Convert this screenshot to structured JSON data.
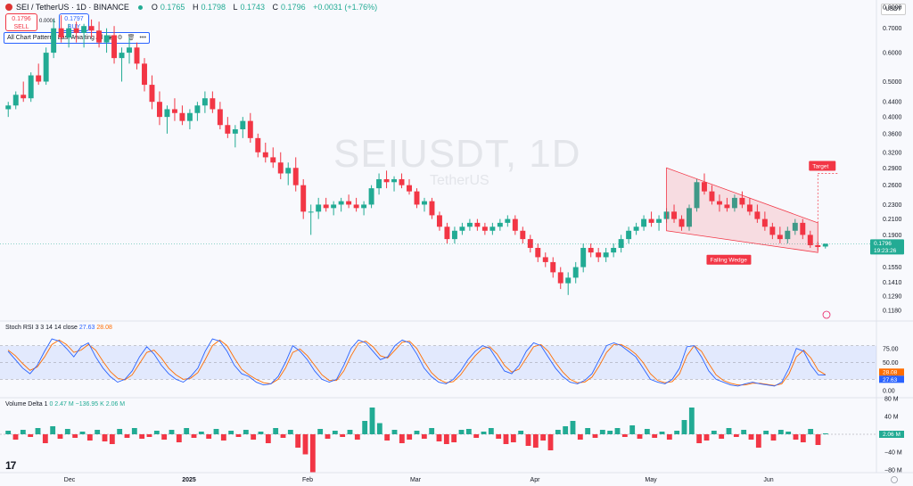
{
  "header": {
    "symbol": "SEI / TetherUS · 1D · BINANCE",
    "ohlc": [
      {
        "k": "O",
        "v": "0.1765"
      },
      {
        "k": "H",
        "v": "0.1798"
      },
      {
        "k": "L",
        "v": "0.1743"
      },
      {
        "k": "C",
        "v": "0.1796"
      },
      {
        "k": "",
        "v": "+0.0031 (+1.76%)"
      }
    ]
  },
  "trade": {
    "sell_price": "0.1796",
    "sell_label": "SELL",
    "spread": "0.0001",
    "buy_price": "0.1797",
    "buy_label": "BUY"
  },
  "indicator_box": {
    "label": "All Chart Patterns Last Awaiting All"
  },
  "watermark": {
    "symbol": "SEIUSDT, 1D",
    "name": "TetherUS"
  },
  "currency": "USDT",
  "price_axis": [
    "0.8000",
    "0.7000",
    "0.6000",
    "0.5000",
    "0.4400",
    "0.4000",
    "0.3600",
    "0.3200",
    "0.2900",
    "0.2600",
    "0.2300",
    "0.2100",
    "0.1900",
    "0.1550",
    "0.1410",
    "0.1290",
    "0.1180"
  ],
  "last_price": {
    "value": "0.1796",
    "countdown": "19:23:26"
  },
  "pattern": {
    "name": "Falling Wedge",
    "target_label": "Target"
  },
  "rsi": {
    "title": "Stoch RSI 3 3 14 14 close",
    "k": "27.63",
    "d": "28.08",
    "axis": [
      "75.00",
      "50.00",
      "25.00",
      "0.00"
    ]
  },
  "volume": {
    "title": "Volume Delta 1",
    "v0": "0",
    "v1": "2.47 M",
    "v2": "−136.95 K",
    "v3": "2.06 M",
    "axis": [
      "80 M",
      "40 M",
      "0",
      "−40 M",
      "−80 M"
    ],
    "last": "2.06 M"
  },
  "time_axis": [
    "Dec",
    "2025",
    "Feb",
    "Mar",
    "Apr",
    "May",
    "Jun"
  ],
  "colors": {
    "up": "#22ab94",
    "down": "#f23645",
    "k_line": "#2962ff",
    "d_line": "#ff6d00",
    "wedge": "#f23645"
  },
  "chart_data": [
    {
      "type": "candlestick",
      "series": [
        {
          "name": "SEI / TetherUS",
          "values": [
            [
              0.42,
              0.44,
              0.4,
              0.43
            ],
            [
              0.43,
              0.47,
              0.42,
              0.46
            ],
            [
              0.46,
              0.5,
              0.44,
              0.45
            ],
            [
              0.45,
              0.53,
              0.44,
              0.52
            ],
            [
              0.52,
              0.56,
              0.49,
              0.5
            ],
            [
              0.5,
              0.62,
              0.49,
              0.6
            ],
            [
              0.6,
              0.74,
              0.58,
              0.7
            ],
            [
              0.7,
              0.76,
              0.64,
              0.66
            ],
            [
              0.66,
              0.72,
              0.62,
              0.7
            ],
            [
              0.7,
              0.73,
              0.64,
              0.68
            ],
            [
              0.68,
              0.72,
              0.62,
              0.71
            ],
            [
              0.71,
              0.74,
              0.66,
              0.69
            ],
            [
              0.69,
              0.73,
              0.62,
              0.64
            ],
            [
              0.64,
              0.7,
              0.6,
              0.67
            ],
            [
              0.67,
              0.71,
              0.56,
              0.58
            ],
            [
              0.58,
              0.62,
              0.5,
              0.6
            ],
            [
              0.6,
              0.66,
              0.56,
              0.62
            ],
            [
              0.62,
              0.64,
              0.54,
              0.56
            ],
            [
              0.56,
              0.58,
              0.47,
              0.49
            ],
            [
              0.49,
              0.52,
              0.42,
              0.44
            ],
            [
              0.44,
              0.47,
              0.38,
              0.4
            ],
            [
              0.4,
              0.43,
              0.36,
              0.42
            ],
            [
              0.42,
              0.45,
              0.39,
              0.41
            ],
            [
              0.41,
              0.43,
              0.38,
              0.39
            ],
            [
              0.39,
              0.42,
              0.37,
              0.41
            ],
            [
              0.41,
              0.44,
              0.39,
              0.43
            ],
            [
              0.43,
              0.47,
              0.41,
              0.45
            ],
            [
              0.45,
              0.47,
              0.41,
              0.42
            ],
            [
              0.42,
              0.44,
              0.37,
              0.38
            ],
            [
              0.38,
              0.4,
              0.35,
              0.36
            ],
            [
              0.36,
              0.38,
              0.33,
              0.37
            ],
            [
              0.37,
              0.4,
              0.35,
              0.39
            ],
            [
              0.39,
              0.41,
              0.34,
              0.35
            ],
            [
              0.35,
              0.36,
              0.31,
              0.32
            ],
            [
              0.32,
              0.34,
              0.3,
              0.31
            ],
            [
              0.31,
              0.33,
              0.29,
              0.3
            ],
            [
              0.3,
              0.32,
              0.27,
              0.28
            ],
            [
              0.28,
              0.3,
              0.26,
              0.29
            ],
            [
              0.29,
              0.31,
              0.25,
              0.26
            ],
            [
              0.26,
              0.27,
              0.21,
              0.22
            ],
            [
              0.22,
              0.23,
              0.19,
              0.22
            ],
            [
              0.22,
              0.24,
              0.21,
              0.23
            ],
            [
              0.23,
              0.24,
              0.22,
              0.225
            ],
            [
              0.225,
              0.235,
              0.215,
              0.23
            ],
            [
              0.23,
              0.24,
              0.22,
              0.235
            ],
            [
              0.235,
              0.245,
              0.225,
              0.23
            ],
            [
              0.23,
              0.24,
              0.22,
              0.225
            ],
            [
              0.225,
              0.235,
              0.215,
              0.23
            ],
            [
              0.23,
              0.26,
              0.225,
              0.255
            ],
            [
              0.255,
              0.28,
              0.245,
              0.27
            ],
            [
              0.27,
              0.285,
              0.255,
              0.265
            ],
            [
              0.265,
              0.275,
              0.25,
              0.27
            ],
            [
              0.27,
              0.28,
              0.255,
              0.26
            ],
            [
              0.26,
              0.27,
              0.245,
              0.25
            ],
            [
              0.25,
              0.255,
              0.225,
              0.23
            ],
            [
              0.23,
              0.24,
              0.22,
              0.235
            ],
            [
              0.235,
              0.24,
              0.21,
              0.215
            ],
            [
              0.215,
              0.22,
              0.195,
              0.2
            ],
            [
              0.2,
              0.205,
              0.18,
              0.185
            ],
            [
              0.185,
              0.2,
              0.18,
              0.195
            ],
            [
              0.195,
              0.205,
              0.19,
              0.2
            ],
            [
              0.2,
              0.21,
              0.195,
              0.205
            ],
            [
              0.205,
              0.21,
              0.195,
              0.2
            ],
            [
              0.2,
              0.205,
              0.19,
              0.195
            ],
            [
              0.195,
              0.205,
              0.19,
              0.2
            ],
            [
              0.2,
              0.21,
              0.195,
              0.205
            ],
            [
              0.205,
              0.215,
              0.2,
              0.21
            ],
            [
              0.21,
              0.215,
              0.19,
              0.195
            ],
            [
              0.195,
              0.2,
              0.18,
              0.185
            ],
            [
              0.185,
              0.19,
              0.17,
              0.175
            ],
            [
              0.175,
              0.18,
              0.16,
              0.165
            ],
            [
              0.165,
              0.17,
              0.155,
              0.16
            ],
            [
              0.16,
              0.165,
              0.145,
              0.15
            ],
            [
              0.15,
              0.155,
              0.135,
              0.14
            ],
            [
              0.14,
              0.15,
              0.13,
              0.145
            ],
            [
              0.145,
              0.16,
              0.14,
              0.155
            ],
            [
              0.155,
              0.18,
              0.15,
              0.175
            ],
            [
              0.175,
              0.18,
              0.165,
              0.17
            ],
            [
              0.17,
              0.175,
              0.16,
              0.165
            ],
            [
              0.165,
              0.175,
              0.16,
              0.17
            ],
            [
              0.17,
              0.18,
              0.165,
              0.175
            ],
            [
              0.175,
              0.19,
              0.17,
              0.185
            ],
            [
              0.185,
              0.2,
              0.18,
              0.195
            ],
            [
              0.195,
              0.205,
              0.19,
              0.2
            ],
            [
              0.2,
              0.215,
              0.195,
              0.21
            ],
            [
              0.21,
              0.22,
              0.2,
              0.205
            ],
            [
              0.205,
              0.215,
              0.195,
              0.21
            ],
            [
              0.21,
              0.225,
              0.205,
              0.22
            ],
            [
              0.22,
              0.23,
              0.205,
              0.21
            ],
            [
              0.21,
              0.215,
              0.195,
              0.2
            ],
            [
              0.2,
              0.23,
              0.195,
              0.225
            ],
            [
              0.225,
              0.27,
              0.22,
              0.265
            ],
            [
              0.265,
              0.28,
              0.245,
              0.25
            ],
            [
              0.25,
              0.26,
              0.23,
              0.235
            ],
            [
              0.235,
              0.245,
              0.22,
              0.23
            ],
            [
              0.23,
              0.24,
              0.22,
              0.225
            ],
            [
              0.225,
              0.245,
              0.22,
              0.24
            ],
            [
              0.24,
              0.25,
              0.225,
              0.23
            ],
            [
              0.23,
              0.24,
              0.215,
              0.22
            ],
            [
              0.22,
              0.23,
              0.205,
              0.21
            ],
            [
              0.21,
              0.22,
              0.195,
              0.2
            ],
            [
              0.2,
              0.205,
              0.185,
              0.19
            ],
            [
              0.19,
              0.2,
              0.18,
              0.185
            ],
            [
              0.185,
              0.2,
              0.18,
              0.195
            ],
            [
              0.195,
              0.21,
              0.19,
              0.205
            ],
            [
              0.205,
              0.21,
              0.185,
              0.19
            ],
            [
              0.19,
              0.195,
              0.175,
              0.178
            ],
            [
              0.178,
              0.182,
              0.172,
              0.176
            ],
            [
              0.1765,
              0.1798,
              0.1743,
              0.1796
            ]
          ]
        }
      ],
      "ylabel": "",
      "ylim": [
        0.118,
        0.8
      ],
      "scale": "log",
      "pattern": {
        "name": "Falling Wedge",
        "target": 0.28
      }
    },
    {
      "type": "line",
      "title": "Stoch RSI 3 3 14 14 close",
      "ylim": [
        0,
        100
      ],
      "series": [
        {
          "name": "K",
          "values": [
            70,
            55,
            40,
            30,
            45,
            70,
            92,
            88,
            75,
            60,
            78,
            85,
            60,
            40,
            25,
            15,
            20,
            35,
            60,
            78,
            65,
            45,
            30,
            20,
            15,
            25,
            40,
            70,
            92,
            88,
            70,
            45,
            30,
            25,
            15,
            10,
            12,
            25,
            50,
            80,
            70,
            55,
            35,
            20,
            15,
            20,
            45,
            75,
            90,
            85,
            70,
            55,
            60,
            80,
            90,
            85,
            65,
            40,
            25,
            15,
            12,
            20,
            35,
            55,
            70,
            80,
            75,
            55,
            35,
            30,
            45,
            70,
            85,
            80,
            60,
            40,
            25,
            15,
            12,
            18,
            30,
            55,
            80,
            85,
            80,
            70,
            60,
            40,
            20,
            15,
            12,
            20,
            40,
            78,
            80,
            60,
            35,
            20,
            15,
            10,
            8,
            12,
            15,
            12,
            10,
            8,
            15,
            40,
            75,
            70,
            45,
            28,
            27.63
          ]
        },
        {
          "name": "D",
          "values": [
            72,
            62,
            48,
            36,
            42,
            60,
            82,
            90,
            82,
            68,
            72,
            82,
            72,
            52,
            34,
            22,
            19,
            28,
            48,
            68,
            72,
            58,
            40,
            28,
            20,
            22,
            32,
            55,
            80,
            90,
            80,
            58,
            38,
            28,
            20,
            14,
            12,
            20,
            40,
            68,
            74,
            62,
            45,
            28,
            18,
            18,
            35,
            62,
            84,
            88,
            78,
            62,
            58,
            72,
            86,
            88,
            75,
            52,
            32,
            20,
            14,
            16,
            28,
            46,
            62,
            75,
            78,
            65,
            45,
            33,
            38,
            58,
            78,
            82,
            70,
            50,
            33,
            20,
            14,
            15,
            24,
            44,
            68,
            82,
            82,
            75,
            65,
            50,
            30,
            18,
            14,
            16,
            30,
            62,
            80,
            70,
            48,
            28,
            18,
            13,
            10,
            10,
            13,
            13,
            11,
            9,
            12,
            30,
            60,
            72,
            58,
            36,
            28.08
          ]
        }
      ]
    },
    {
      "type": "bar",
      "title": "Volume Delta 1",
      "ylim": [
        -100,
        100
      ],
      "values": [
        8,
        -12,
        10,
        -6,
        14,
        -20,
        18,
        -10,
        12,
        -8,
        6,
        -14,
        10,
        -16,
        -22,
        12,
        -8,
        14,
        -10,
        -6,
        8,
        -12,
        10,
        -18,
        14,
        -8,
        6,
        -10,
        12,
        -14,
        8,
        -6,
        10,
        -12,
        6,
        -20,
        14,
        -8,
        10,
        -30,
        -45,
        -85,
        12,
        -10,
        8,
        -6,
        10,
        -12,
        30,
        60,
        25,
        -14,
        10,
        -20,
        -12,
        8,
        -10,
        14,
        -16,
        -22,
        -18,
        10,
        12,
        -8,
        6,
        14,
        -10,
        -22,
        -18,
        8,
        -26,
        -30,
        -14,
        -36,
        10,
        18,
        30,
        -12,
        14,
        -8,
        10,
        8,
        14,
        -6,
        20,
        -10,
        12,
        -8,
        6,
        -12,
        8,
        32,
        60,
        -20,
        -14,
        8,
        -10,
        14,
        -6,
        10,
        -12,
        -30,
        8,
        -14,
        10,
        6,
        -12,
        -18,
        12,
        -24,
        2.06
      ]
    }
  ]
}
